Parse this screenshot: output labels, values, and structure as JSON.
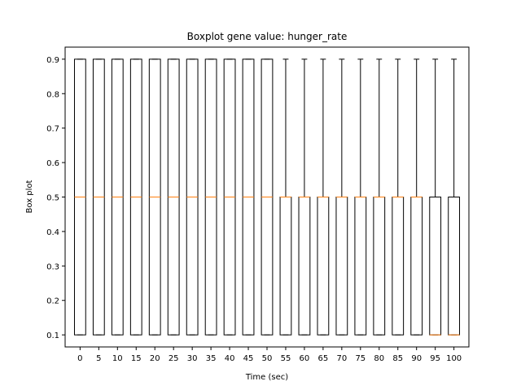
{
  "chart_data": {
    "type": "boxplot",
    "title": "Boxplot gene value: hunger_rate",
    "xlabel": "Time (sec)",
    "ylabel": "Box plot",
    "categories": [
      "0",
      "5",
      "10",
      "15",
      "20",
      "25",
      "30",
      "35",
      "40",
      "45",
      "50",
      "55",
      "60",
      "65",
      "70",
      "75",
      "80",
      "85",
      "90",
      "95",
      "100"
    ],
    "ylim": [
      0.065,
      0.935
    ],
    "yticks": [
      0.1,
      0.2,
      0.3,
      0.4,
      0.5,
      0.6,
      0.7,
      0.8,
      0.9
    ],
    "ytick_labels": [
      "0.1",
      "0.2",
      "0.3",
      "0.4",
      "0.5",
      "0.6",
      "0.7",
      "0.8",
      "0.9"
    ],
    "boxes": [
      {
        "whisker_low": 0.1,
        "q1": 0.1,
        "median": 0.5,
        "q3": 0.9,
        "whisker_high": 0.9
      },
      {
        "whisker_low": 0.1,
        "q1": 0.1,
        "median": 0.5,
        "q3": 0.9,
        "whisker_high": 0.9
      },
      {
        "whisker_low": 0.1,
        "q1": 0.1,
        "median": 0.5,
        "q3": 0.9,
        "whisker_high": 0.9
      },
      {
        "whisker_low": 0.1,
        "q1": 0.1,
        "median": 0.5,
        "q3": 0.9,
        "whisker_high": 0.9
      },
      {
        "whisker_low": 0.1,
        "q1": 0.1,
        "median": 0.5,
        "q3": 0.9,
        "whisker_high": 0.9
      },
      {
        "whisker_low": 0.1,
        "q1": 0.1,
        "median": 0.5,
        "q3": 0.9,
        "whisker_high": 0.9
      },
      {
        "whisker_low": 0.1,
        "q1": 0.1,
        "median": 0.5,
        "q3": 0.9,
        "whisker_high": 0.9
      },
      {
        "whisker_low": 0.1,
        "q1": 0.1,
        "median": 0.5,
        "q3": 0.9,
        "whisker_high": 0.9
      },
      {
        "whisker_low": 0.1,
        "q1": 0.1,
        "median": 0.5,
        "q3": 0.9,
        "whisker_high": 0.9
      },
      {
        "whisker_low": 0.1,
        "q1": 0.1,
        "median": 0.5,
        "q3": 0.9,
        "whisker_high": 0.9
      },
      {
        "whisker_low": 0.1,
        "q1": 0.1,
        "median": 0.5,
        "q3": 0.9,
        "whisker_high": 0.9
      },
      {
        "whisker_low": 0.1,
        "q1": 0.1,
        "median": 0.5,
        "q3": 0.5,
        "whisker_high": 0.9
      },
      {
        "whisker_low": 0.1,
        "q1": 0.1,
        "median": 0.5,
        "q3": 0.5,
        "whisker_high": 0.9
      },
      {
        "whisker_low": 0.1,
        "q1": 0.1,
        "median": 0.5,
        "q3": 0.5,
        "whisker_high": 0.9
      },
      {
        "whisker_low": 0.1,
        "q1": 0.1,
        "median": 0.5,
        "q3": 0.5,
        "whisker_high": 0.9
      },
      {
        "whisker_low": 0.1,
        "q1": 0.1,
        "median": 0.5,
        "q3": 0.5,
        "whisker_high": 0.9
      },
      {
        "whisker_low": 0.1,
        "q1": 0.1,
        "median": 0.5,
        "q3": 0.5,
        "whisker_high": 0.9
      },
      {
        "whisker_low": 0.1,
        "q1": 0.1,
        "median": 0.5,
        "q3": 0.5,
        "whisker_high": 0.9
      },
      {
        "whisker_low": 0.1,
        "q1": 0.1,
        "median": 0.5,
        "q3": 0.5,
        "whisker_high": 0.9
      },
      {
        "whisker_low": 0.1,
        "q1": 0.1,
        "median": 0.1,
        "q3": 0.5,
        "whisker_high": 0.9
      },
      {
        "whisker_low": 0.1,
        "q1": 0.1,
        "median": 0.1,
        "q3": 0.5,
        "whisker_high": 0.9
      }
    ],
    "grid": false,
    "colors": {
      "box": "#000000",
      "median": "#ff7f0e",
      "background": "#ffffff"
    }
  }
}
